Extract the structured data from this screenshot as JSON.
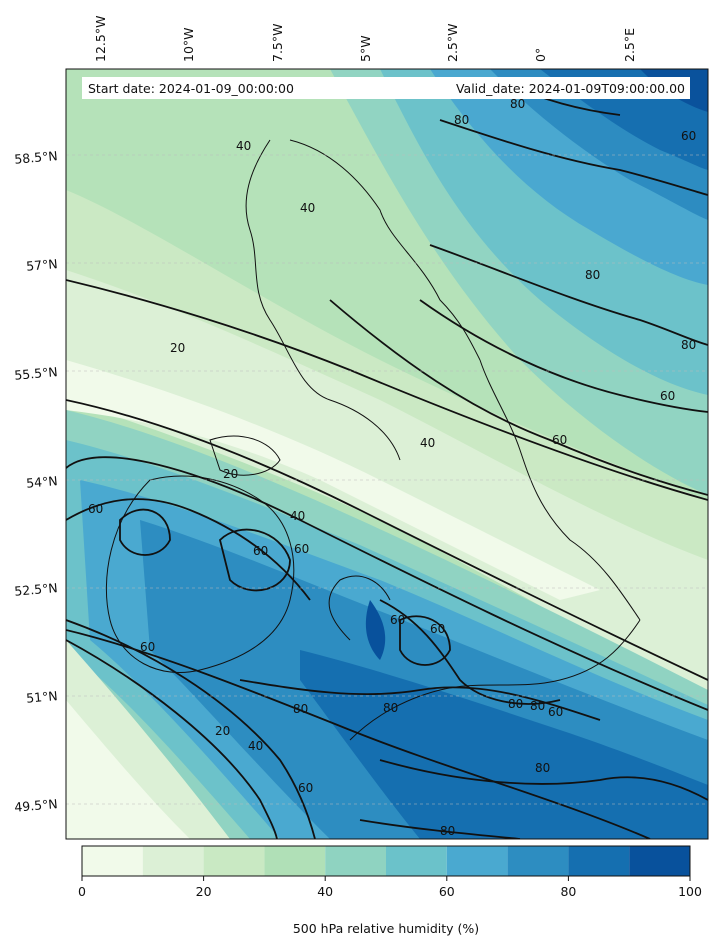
{
  "header": {
    "start_date": "Start date: 2024-01-09_00:00:00",
    "valid_date": "Valid_date: 2024-01-09T09:00:00.00"
  },
  "longitude_labels": [
    "12.5°W",
    "10°W",
    "7.5°W",
    "5°W",
    "2.5°W",
    "0°",
    "2.5°E"
  ],
  "latitude_labels": [
    "58.5°N",
    "57°N",
    "55.5°N",
    "54°N",
    "52.5°N",
    "51°N",
    "49.5°N"
  ],
  "contour_labels": [
    "40",
    "40",
    "80",
    "80",
    "60",
    "60",
    "80",
    "80",
    "60",
    "20",
    "40",
    "20",
    "40",
    "60",
    "60",
    "60",
    "60",
    "60",
    "60",
    "80",
    "80",
    "80",
    "80",
    "20",
    "40",
    "60",
    "80",
    "80",
    "60"
  ],
  "colorbar": {
    "label": "500 hPa relative humidity (%)",
    "ticks": [
      "0",
      "20",
      "40",
      "60",
      "80",
      "100"
    ],
    "colors": [
      "#f1faea",
      "#dcf0d6",
      "#c9e9c3",
      "#b0e0b7",
      "#8fd3c1",
      "#6bc2ca",
      "#4aa9d0",
      "#2d8dc1",
      "#156fb0",
      "#08519c"
    ]
  }
}
